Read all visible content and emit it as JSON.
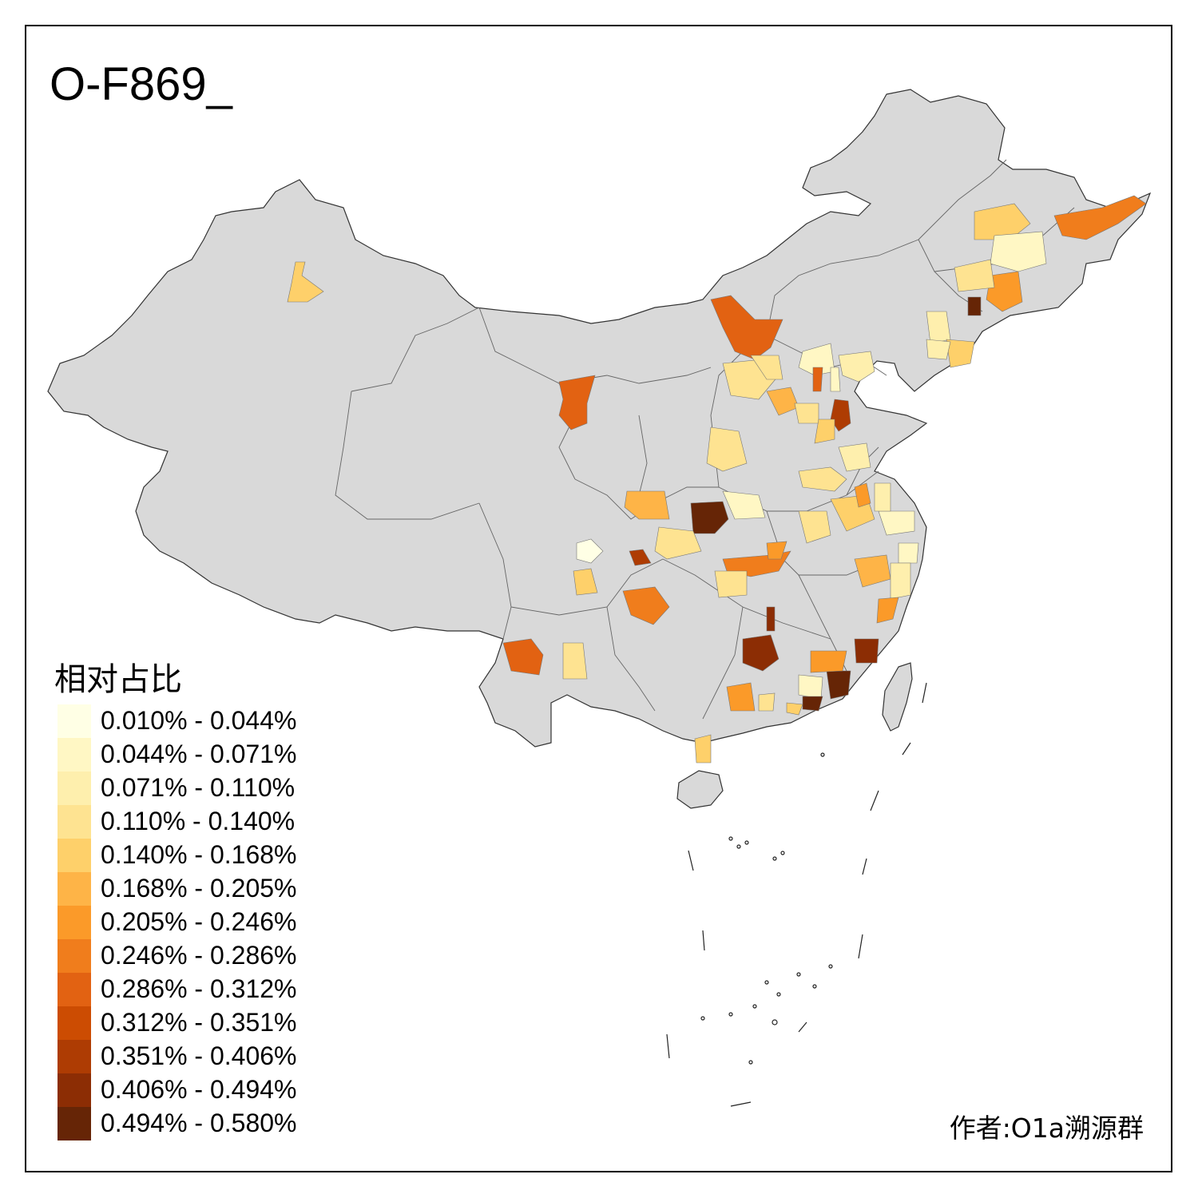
{
  "title": "O-F869_",
  "legend": {
    "title": "相对占比",
    "items": [
      {
        "label": "0.010% - 0.044%",
        "color": "#FFFFE5"
      },
      {
        "label": "0.044% - 0.071%",
        "color": "#FFF7C4"
      },
      {
        "label": "0.071% - 0.110%",
        "color": "#FEEFAD"
      },
      {
        "label": "0.110% - 0.140%",
        "color": "#FEE391"
      },
      {
        "label": "0.140% - 0.168%",
        "color": "#FED06A"
      },
      {
        "label": "0.168% - 0.205%",
        "color": "#FEB447"
      },
      {
        "label": "0.205% - 0.246%",
        "color": "#FB9A29"
      },
      {
        "label": "0.246% - 0.286%",
        "color": "#F07D1C"
      },
      {
        "label": "0.286% - 0.312%",
        "color": "#E26212"
      },
      {
        "label": "0.312% - 0.351%",
        "color": "#CC4C02"
      },
      {
        "label": "0.351% - 0.406%",
        "color": "#AE3C03"
      },
      {
        "label": "0.406% - 0.494%",
        "color": "#8C2D04"
      },
      {
        "label": "0.494% - 0.580%",
        "color": "#662506"
      }
    ]
  },
  "author": "作者:O1a溯源群",
  "colors": {
    "land": "#D9D9D9",
    "border": "#555555",
    "frame": "#000000"
  }
}
